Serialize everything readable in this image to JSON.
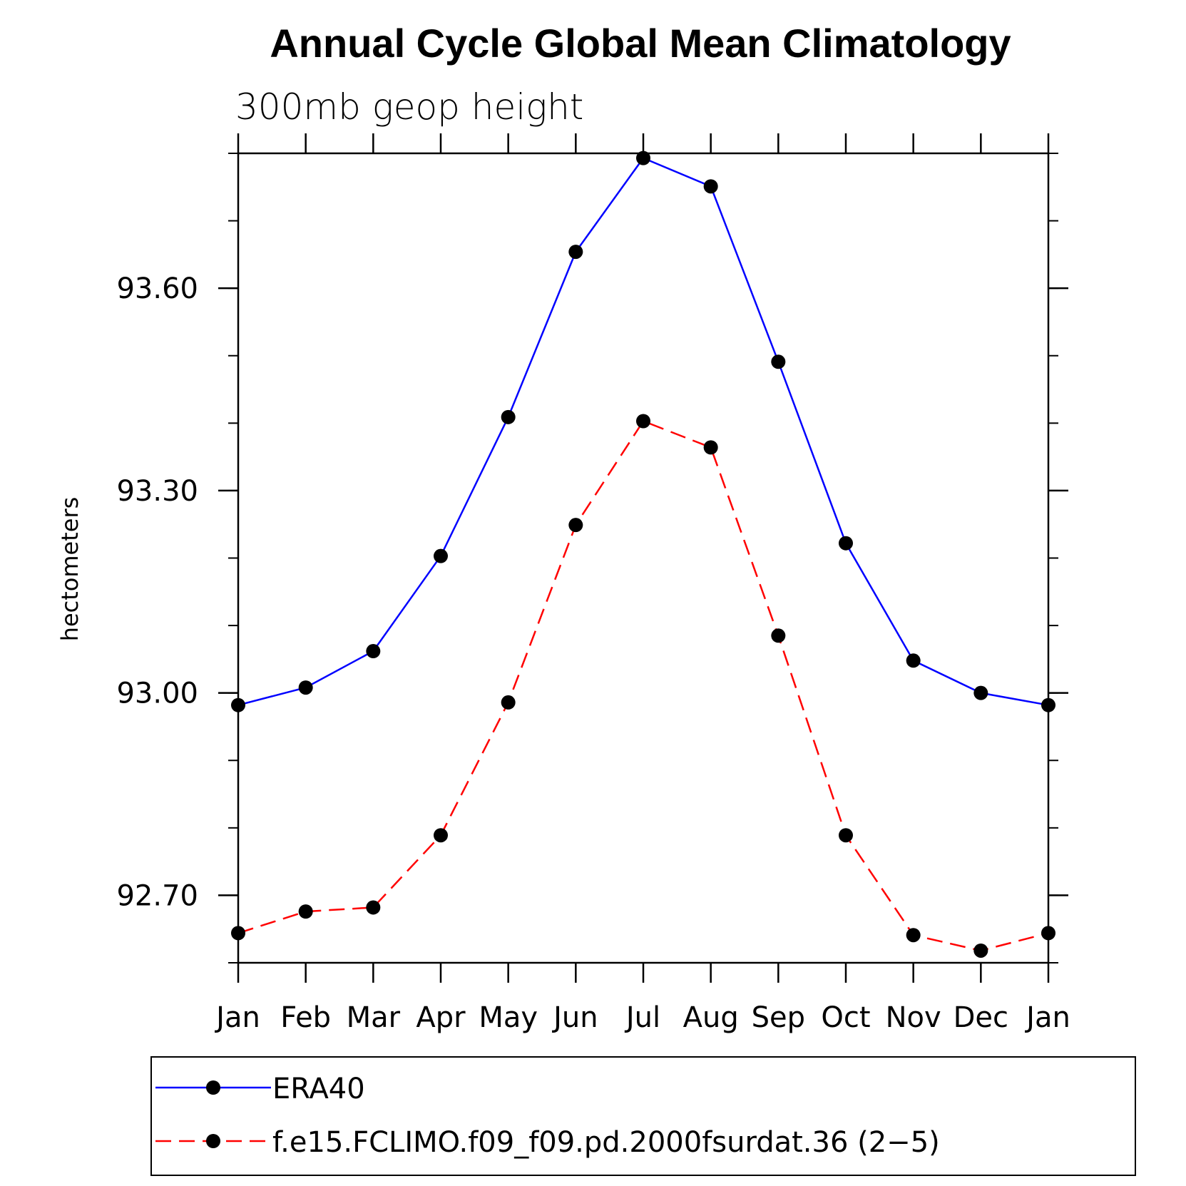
{
  "chart_data": {
    "type": "line",
    "title": "Annual Cycle Global Mean Climatology",
    "subtitle": "300mb geop height",
    "xlabel": "",
    "ylabel": "hectometers",
    "categories": [
      "Jan",
      "Feb",
      "Mar",
      "Apr",
      "May",
      "Jun",
      "Jul",
      "Aug",
      "Sep",
      "Oct",
      "Nov",
      "Dec",
      "Jan"
    ],
    "ylim": [
      92.6,
      93.8
    ],
    "yticks": [
      92.7,
      93.0,
      93.3,
      93.6
    ],
    "ytick_labels": [
      "92.70",
      "93.00",
      "93.30",
      "93.60"
    ],
    "y_minor_step": 0.1,
    "series": [
      {
        "name": "ERA40",
        "color": "#0000ff",
        "dash": "solid",
        "values": [
          92.982,
          93.008,
          93.062,
          93.203,
          93.409,
          93.654,
          93.793,
          93.751,
          93.491,
          93.222,
          93.048,
          93.0,
          92.982
        ]
      },
      {
        "name": "f.e15.FCLIMO.f09_f09.pd.2000fsurdat.36 (2−5)",
        "color": "#ff0000",
        "dash": "dashed",
        "values": [
          92.644,
          92.676,
          92.682,
          92.789,
          92.986,
          93.249,
          93.403,
          93.364,
          93.085,
          92.789,
          92.641,
          92.618,
          92.644
        ]
      }
    ],
    "legend_position": "bottom"
  }
}
